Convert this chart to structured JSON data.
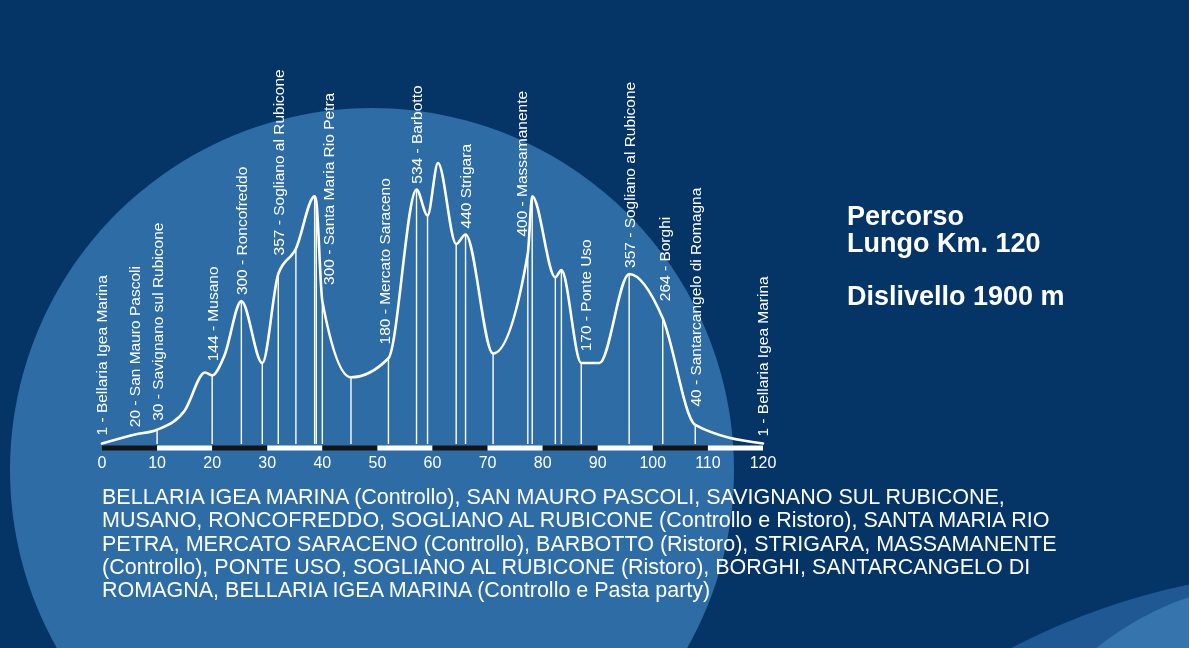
{
  "chart_data": {
    "type": "line",
    "title": "Percorso Lungo Km. 120",
    "annotations": [
      "Dislivello 1900 m",
      "BELLARIA IGEA MARINA (Controllo), SAN MAURO PASCOLI, SAVIGNANO SUL RUBICONE, MUSANO, RONCOFREDDO, SOGLIANO AL RUBICONE (Controllo e Ristoro), SANTA MARIA RIO PETRA, MERCATO SARACENO (Controllo), BARBOTTO (Ristoro), STRIGARA, MASSAMANENTE (Controllo), PONTE USO, SOGLIANO AL RUBICONE (Ristoro), BORGHI, SANTARCANGELO DI ROMAGNA, BELLARIA IGEA MARINA (Controllo e Pasta party)"
    ],
    "xlim": [
      0,
      120
    ],
    "xticks": [
      0,
      10,
      20,
      30,
      40,
      50,
      60,
      70,
      80,
      90,
      100,
      110,
      120
    ],
    "series": [
      {
        "color": "#ffffff",
        "x": [
          0,
          6,
          10,
          15,
          18.7,
          20,
          22.2,
          25.3,
          29.1,
          32,
          35.2,
          38.6,
          38.9,
          40,
          45.2,
          52,
          57.1,
          59.1,
          61,
          64.3,
          66,
          71,
          77.3,
          78.1,
          82.3,
          83.4,
          87,
          90.3,
          95.7,
          101.8,
          107.7,
          120
        ],
        "values": [
          1,
          20,
          30,
          70,
          150,
          144,
          185,
          300,
          170,
          357,
          410,
          520,
          510,
          300,
          140,
          180,
          534,
          480,
          590,
          420,
          440,
          190,
          400,
          520,
          350,
          365,
          170,
          170,
          357,
          264,
          40,
          1
        ],
        "value_labels": [
          "1 - Bellaria Igea Marina",
          "20 - San Mauro Pascoli",
          "30 - Savignano sul Rubicone",
          null,
          null,
          "144 - Musano",
          null,
          "300 - Roncofreddo",
          null,
          "357 - Sogliano al Rubicone",
          null,
          null,
          null,
          "300 - Santa Maria Rio Petra",
          null,
          "180 - Mercato Saraceno",
          "534 - Barbotto",
          null,
          null,
          null,
          "440 Strigara",
          null,
          "400 - Massamanente",
          null,
          null,
          null,
          "170 - Ponte Uso",
          null,
          "357 - Sogliano al Rubicone",
          "264 - Borghi",
          "40 - Santarcangelo di Romagna",
          "1 - Bellaria Igea Marina"
        ]
      },
      {
        "type": "bar",
        "color": "#ffffff",
        "x": [
          10,
          20,
          25.3,
          29.1,
          32,
          35.2,
          38.6,
          38.9,
          40,
          45.2,
          52,
          57.1,
          59.1,
          64.3,
          66,
          71,
          77.3,
          78.1,
          82.3,
          83.4,
          87,
          95.7,
          101.8,
          107.7
        ],
        "values": [
          30,
          144,
          300,
          170,
          357,
          410,
          520,
          510,
          300,
          140,
          180,
          534,
          480,
          420,
          440,
          190,
          400,
          520,
          350,
          365,
          170,
          357,
          264,
          40
        ]
      }
    ]
  }
}
